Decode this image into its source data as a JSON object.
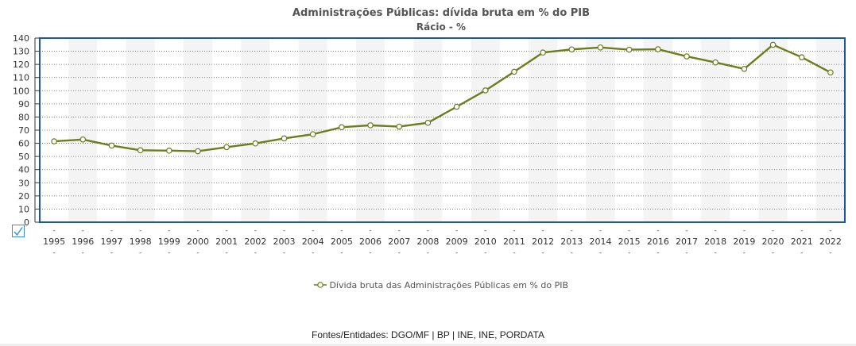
{
  "chart_data": {
    "type": "line",
    "title": "Administrações Públicas: dívida bruta em % do PIB",
    "subtitle": "Rácio - %",
    "xlabel": "",
    "ylabel": "",
    "x": [
      "1995",
      "1996",
      "1997",
      "1998",
      "1999",
      "2000",
      "2001",
      "2002",
      "2003",
      "2004",
      "2005",
      "2006",
      "2007",
      "2008",
      "2009",
      "2010",
      "2011",
      "2012",
      "2013",
      "2014",
      "2015",
      "2016",
      "2017",
      "2018",
      "2019",
      "2020",
      "2021",
      "2022"
    ],
    "series": [
      {
        "name": "Dívida bruta das Administrações Públicas em % do PIB",
        "color": "#6b7d1e",
        "values": [
          61.5,
          62.9,
          58.3,
          54.7,
          54.4,
          54.0,
          57.1,
          59.9,
          63.7,
          66.9,
          72.2,
          73.7,
          72.7,
          75.6,
          87.8,
          100.2,
          114.4,
          129.0,
          131.4,
          132.9,
          131.2,
          131.5,
          126.1,
          121.5,
          116.6,
          134.9,
          125.4,
          113.9
        ]
      }
    ],
    "ylim": [
      0,
      140
    ],
    "yticks": [
      0,
      10,
      20,
      30,
      40,
      50,
      60,
      70,
      80,
      90,
      100,
      110,
      120,
      130,
      140
    ],
    "grid": true,
    "legend": "bottom-center",
    "frame_color": "#1a5a99"
  },
  "footer": {
    "sources": "Fontes/Entidades: DGO/MF | BP | INE, INE, PORDATA"
  },
  "controls": {
    "checkbox_icon": "checkbox-checked-icon"
  }
}
